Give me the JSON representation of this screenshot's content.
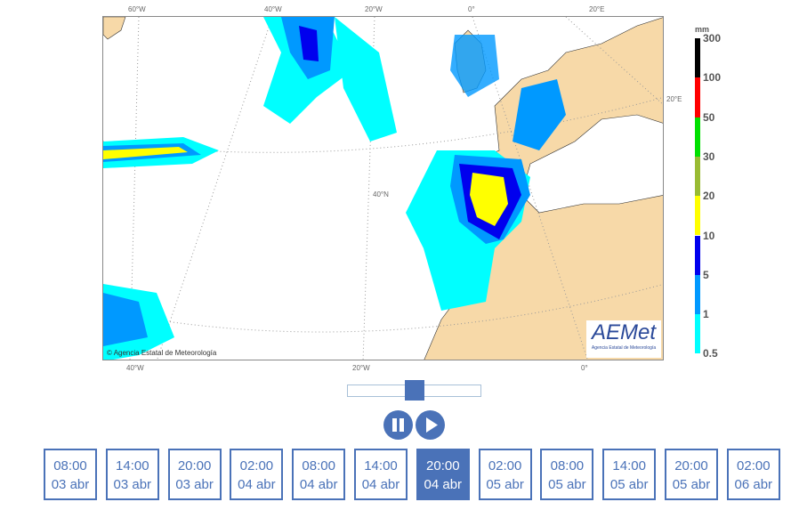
{
  "map": {
    "top_labels": [
      "60°W",
      "40°W",
      "20°W",
      "0°",
      "20°E"
    ],
    "bottom_labels": [
      "40°W",
      "20°W",
      "0°"
    ],
    "right_label": "20°E",
    "inner_label": "40°N",
    "copyright": "Agencia Estatal de Meteorología",
    "logo_text": "AEMet",
    "logo_subtext": "Agencia Estatal de Meteorología"
  },
  "legend": {
    "unit": "mm",
    "thresholds": [
      "300",
      "100",
      "50",
      "30",
      "20",
      "10",
      "5",
      "1",
      "0.5"
    ],
    "colors": [
      "#000000",
      "#ff0000",
      "#00e000",
      "#99bb33",
      "#ffff00",
      "#0000ee",
      "#0099ff",
      "#00ffff"
    ]
  },
  "slider": {
    "position_fraction": 0.545
  },
  "controls": {
    "pause_icon": "pause-icon",
    "play_icon": "play-icon"
  },
  "timeline": {
    "active_index": 6,
    "accent": "#4a72b8",
    "steps": [
      {
        "time": "08:00",
        "date": "03 abr"
      },
      {
        "time": "14:00",
        "date": "03 abr"
      },
      {
        "time": "20:00",
        "date": "03 abr"
      },
      {
        "time": "02:00",
        "date": "04 abr"
      },
      {
        "time": "08:00",
        "date": "04 abr"
      },
      {
        "time": "14:00",
        "date": "04 abr"
      },
      {
        "time": "20:00",
        "date": "04 abr"
      },
      {
        "time": "02:00",
        "date": "05 abr"
      },
      {
        "time": "08:00",
        "date": "05 abr"
      },
      {
        "time": "14:00",
        "date": "05 abr"
      },
      {
        "time": "20:00",
        "date": "05 abr"
      },
      {
        "time": "02:00",
        "date": "06 abr"
      }
    ]
  }
}
